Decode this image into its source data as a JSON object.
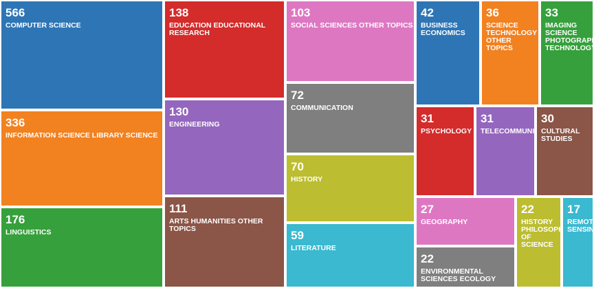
{
  "chart_data": {
    "type": "treemap",
    "title": "",
    "items": [
      {
        "label": "COMPUTER SCIENCE",
        "value": 566,
        "color": "#2E75B6"
      },
      {
        "label": "INFORMATION SCIENCE LIBRARY SCIENCE",
        "value": 336,
        "color": "#F28120"
      },
      {
        "label": "LINGUISTICS",
        "value": 176,
        "color": "#36A03C"
      },
      {
        "label": "EDUCATION EDUCATIONAL RESEARCH",
        "value": 138,
        "color": "#D42B2B"
      },
      {
        "label": "ENGINEERING",
        "value": 130,
        "color": "#9466BE"
      },
      {
        "label": "ARTS HUMANITIES OTHER TOPICS",
        "value": 111,
        "color": "#8B5547"
      },
      {
        "label": "SOCIAL SCIENCES OTHER TOPICS",
        "value": 103,
        "color": "#DE77C2"
      },
      {
        "label": "COMMUNICATION",
        "value": 72,
        "color": "#7F7F7F"
      },
      {
        "label": "HISTORY",
        "value": 70,
        "color": "#BCBD30"
      },
      {
        "label": "LITERATURE",
        "value": 59,
        "color": "#3AB9D0"
      },
      {
        "label": "BUSINESS ECONOMICS",
        "value": 42,
        "color": "#2E75B6"
      },
      {
        "label": "SCIENCE TECHNOLOGY OTHER TOPICS",
        "value": 36,
        "color": "#F28120"
      },
      {
        "label": "IMAGING SCIENCE PHOTOGRAPHIC TECHNOLOGY",
        "value": 33,
        "color": "#36A03C"
      },
      {
        "label": "PSYCHOLOGY",
        "value": 31,
        "color": "#D42B2B"
      },
      {
        "label": "TELECOMMUNICATIONS",
        "value": 31,
        "color": "#9466BE"
      },
      {
        "label": "CULTURAL STUDIES",
        "value": 30,
        "color": "#8B5547"
      },
      {
        "label": "GEOGRAPHY",
        "value": 27,
        "color": "#DE77C2"
      },
      {
        "label": "ENVIRONMENTAL SCIENCES ECOLOGY",
        "value": 22,
        "color": "#7F7F7F"
      },
      {
        "label": "HISTORY PHILOSOPHY OF SCIENCE",
        "value": 22,
        "color": "#BCBD30"
      },
      {
        "label": "REMOTE SENSING",
        "value": 17,
        "color": "#3AB9D0"
      }
    ]
  }
}
